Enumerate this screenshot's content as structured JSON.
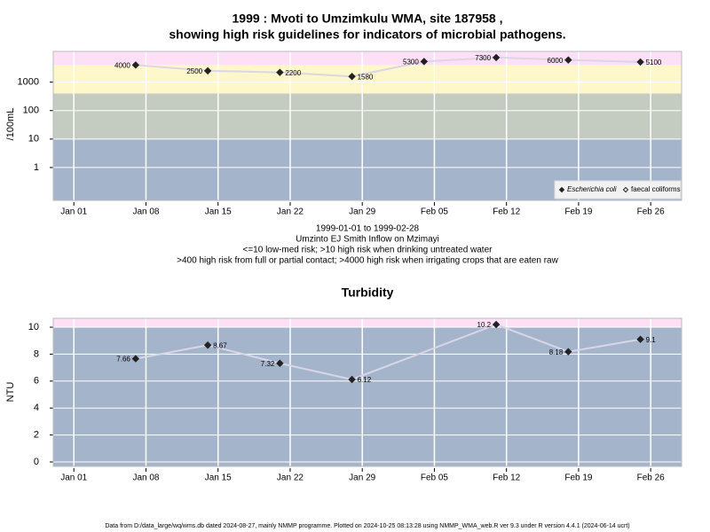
{
  "chart_data": [
    {
      "type": "line",
      "title": [
        "1999 : Mvoti to Umzimkulu WMA, site 187958 ,",
        "showing high risk guidelines for indicators of microbial pathogens."
      ],
      "y_label": "/100mL",
      "x": [
        "1999-01-07",
        "1999-01-14",
        "1999-01-21",
        "1999-01-28",
        "1999-02-04",
        "1999-02-11",
        "1999-02-18",
        "1999-02-25"
      ],
      "series": [
        {
          "name": "Escherichia coli",
          "color": "#222222",
          "values": [
            4000,
            2500,
            2200,
            1580,
            5300,
            7300,
            6000,
            5100
          ]
        },
        {
          "name": "faecal coliforms",
          "color": "#222222",
          "values": [
            null,
            null,
            null,
            null,
            null,
            null,
            null,
            null
          ]
        }
      ],
      "line_color": "#d9d6e6",
      "log_y": true,
      "ylim": [
        0.07,
        12000
      ],
      "yticks": [
        1,
        10,
        100,
        1000
      ],
      "xlim": [
        "1998-12-30",
        "1999-03-01"
      ],
      "xticks": [
        {
          "value": "1999-01-01",
          "label": "Jan 01"
        },
        {
          "value": "1999-01-08",
          "label": "Jan 08"
        },
        {
          "value": "1999-01-15",
          "label": "Jan 15"
        },
        {
          "value": "1999-01-22",
          "label": "Jan 22"
        },
        {
          "value": "1999-01-29",
          "label": "Jan 29"
        },
        {
          "value": "1999-02-05",
          "label": "Feb 05"
        },
        {
          "value": "1999-02-12",
          "label": "Feb 12"
        },
        {
          "value": "1999-02-19",
          "label": "Feb 19"
        },
        {
          "value": "1999-02-26",
          "label": "Feb 26"
        }
      ],
      "thresholds": [
        10,
        400,
        4000
      ],
      "band_colors": [
        "#a4b4cb",
        "#c4ccc1",
        "#fdf7c9",
        "#fde0f6"
      ],
      "grid": true,
      "legend": "lower right",
      "notes": [
        "1999-01-01 to 1999-02-28",
        "Umzinto EJ Smith Inflow on Mzimayi",
        "<=10 low-med risk; >10 high risk when drinking untreated water",
        ">400 high risk from full or partial contact; >4000 high risk when irrigating crops that are eaten raw"
      ]
    },
    {
      "type": "line",
      "title": [
        "Turbidity"
      ],
      "y_label": "NTU",
      "x": [
        "1999-01-07",
        "1999-01-14",
        "1999-01-21",
        "1999-01-28",
        "1999-02-11",
        "1999-02-18",
        "1999-02-25"
      ],
      "series": [
        {
          "name": "Turbidity",
          "color": "#222222",
          "values": [
            7.66,
            8.67,
            7.32,
            6.12,
            10.2,
            8.18,
            9.1
          ]
        }
      ],
      "line_color": "#d9d6e6",
      "log_y": false,
      "ylim": [
        -0.33,
        10.66
      ],
      "yticks": [
        0,
        2,
        4,
        6,
        8,
        10
      ],
      "xlim": [
        "1998-12-30",
        "1999-03-01"
      ],
      "xticks": [
        {
          "value": "1999-01-01",
          "label": "Jan 01"
        },
        {
          "value": "1999-01-08",
          "label": "Jan 08"
        },
        {
          "value": "1999-01-15",
          "label": "Jan 15"
        },
        {
          "value": "1999-01-22",
          "label": "Jan 22"
        },
        {
          "value": "1999-01-29",
          "label": "Jan 29"
        },
        {
          "value": "1999-02-05",
          "label": "Feb 05"
        },
        {
          "value": "1999-02-12",
          "label": "Feb 12"
        },
        {
          "value": "1999-02-19",
          "label": "Feb 19"
        },
        {
          "value": "1999-02-26",
          "label": "Feb 26"
        }
      ],
      "thresholds": [
        10
      ],
      "band_colors": [
        "#a4b4cb",
        "#fde0f6"
      ],
      "grid": true
    }
  ],
  "footer": "Data from D:/data_large/wq/wms.db dated 2024-08-27, mainly NMMP programme. Plotted on 2024-10-25 08:13:28 using NMMP_WMA_web.R ver 9.3 under R version 4.4.1 (2024-06-14 ucrt)"
}
